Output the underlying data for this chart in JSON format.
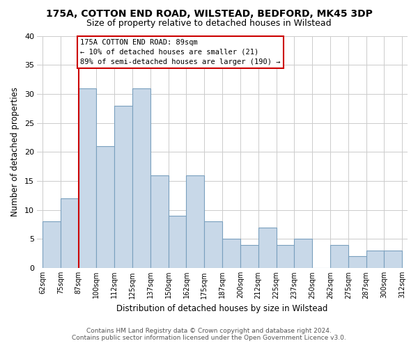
{
  "title": "175A, COTTON END ROAD, WILSTEAD, BEDFORD, MK45 3DP",
  "subtitle": "Size of property relative to detached houses in Wilstead",
  "xlabel": "Distribution of detached houses by size in Wilstead",
  "ylabel": "Number of detached properties",
  "bar_labels": [
    "62sqm",
    "75sqm",
    "87sqm",
    "100sqm",
    "112sqm",
    "125sqm",
    "137sqm",
    "150sqm",
    "162sqm",
    "175sqm",
    "187sqm",
    "200sqm",
    "212sqm",
    "225sqm",
    "237sqm",
    "250sqm",
    "262sqm",
    "275sqm",
    "287sqm",
    "300sqm",
    "312sqm"
  ],
  "bar_values": [
    8,
    12,
    31,
    21,
    28,
    31,
    16,
    9,
    16,
    8,
    5,
    4,
    7,
    4,
    5,
    0,
    4,
    2,
    3,
    3
  ],
  "bar_color": "#c8d8e8",
  "bar_edge_color": "#7aa0be",
  "highlight_x_label": "87sqm",
  "highlight_line_color": "#cc0000",
  "annotation_text": "175A COTTON END ROAD: 89sqm\n← 10% of detached houses are smaller (21)\n89% of semi-detached houses are larger (190) →",
  "annotation_box_edge_color": "#cc0000",
  "ylim": [
    0,
    40
  ],
  "yticks": [
    0,
    5,
    10,
    15,
    20,
    25,
    30,
    35,
    40
  ],
  "footer_line1": "Contains HM Land Registry data © Crown copyright and database right 2024.",
  "footer_line2": "Contains public sector information licensed under the Open Government Licence v3.0.",
  "background_color": "#ffffff",
  "grid_color": "#cccccc"
}
